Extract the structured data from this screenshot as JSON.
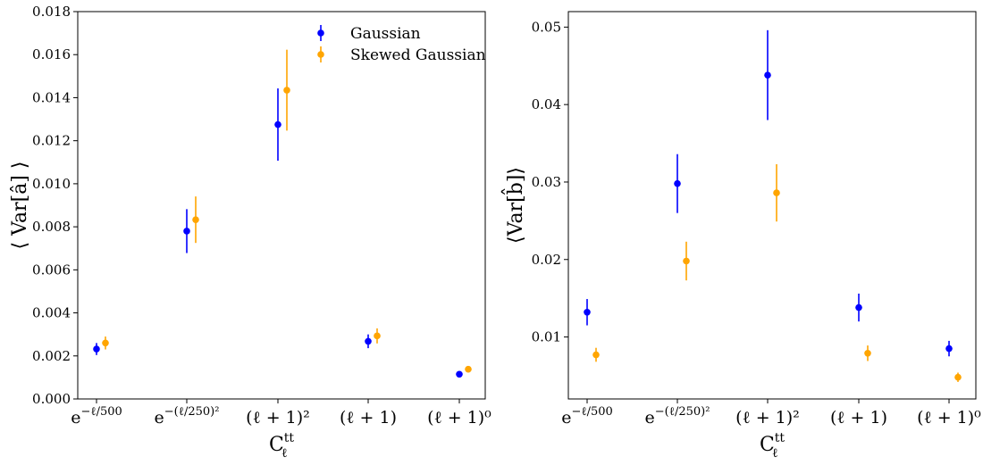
{
  "chart_data": [
    {
      "type": "scatter",
      "errorbars": true,
      "categories": [
        "e^{-ℓ/500}",
        "e^{-(ℓ/250)^2}",
        "(ℓ+1)^2",
        "(ℓ+1)",
        "(ℓ+1)^0"
      ],
      "category_labels": [
        {
          "base": "e",
          "sup": "−ℓ/500"
        },
        {
          "base": "e",
          "sup": "−(ℓ/250)²"
        },
        {
          "base": "(ℓ + 1)²",
          "sup": ""
        },
        {
          "base": "(ℓ + 1)",
          "sup": ""
        },
        {
          "base": "(ℓ + 1)⁰",
          "sup": ""
        }
      ],
      "xlabel": {
        "base": "C",
        "sub": "ℓ",
        "sup": "tt"
      },
      "ylabel": "⟨ Var[â] ⟩",
      "ylim": [
        0,
        0.018
      ],
      "yticks": [
        "0.000",
        "0.002",
        "0.004",
        "0.006",
        "0.008",
        "0.010",
        "0.012",
        "0.014",
        "0.016",
        "0.018"
      ],
      "legend": {
        "position": "top-right"
      },
      "series": [
        {
          "name": "Gaussian",
          "color": "#0000ff",
          "values": [
            0.00232,
            0.0078,
            0.01275,
            0.00268,
            0.00115
          ],
          "errors": [
            0.00028,
            0.00102,
            0.00168,
            0.00032,
            0.00012
          ]
        },
        {
          "name": "Skewed Gaussian",
          "color": "#ffa500",
          "values": [
            0.0026,
            0.00833,
            0.01435,
            0.00293,
            0.00138
          ],
          "errors": [
            0.0003,
            0.00108,
            0.00188,
            0.00035,
            0.00014
          ]
        }
      ]
    },
    {
      "type": "scatter",
      "errorbars": true,
      "categories": [
        "e^{-ℓ/500}",
        "e^{-(ℓ/250)^2}",
        "(ℓ+1)^2",
        "(ℓ+1)",
        "(ℓ+1)^0"
      ],
      "category_labels": [
        {
          "base": "e",
          "sup": "−ℓ/500"
        },
        {
          "base": "e",
          "sup": "−(ℓ/250)²"
        },
        {
          "base": "(ℓ + 1)²",
          "sup": ""
        },
        {
          "base": "(ℓ + 1)",
          "sup": ""
        },
        {
          "base": "(ℓ + 1)⁰",
          "sup": ""
        }
      ],
      "xlabel": {
        "base": "C",
        "sub": "ℓ",
        "sup": "tt"
      },
      "ylabel": "⟨Var[b̂]⟩",
      "ylim": [
        0.002,
        0.052
      ],
      "yticks": [
        "0.01",
        "0.02",
        "0.03",
        "0.04",
        "0.05"
      ],
      "series": [
        {
          "name": "Gaussian",
          "color": "#0000ff",
          "values": [
            0.0132,
            0.0298,
            0.0438,
            0.0138,
            0.0085
          ],
          "errors": [
            0.0017,
            0.0038,
            0.0058,
            0.0018,
            0.001
          ]
        },
        {
          "name": "Skewed Gaussian",
          "color": "#ffa500",
          "values": [
            0.0077,
            0.0198,
            0.0286,
            0.0079,
            0.0048
          ],
          "errors": [
            0.0009,
            0.0025,
            0.0037,
            0.001,
            0.0006
          ]
        }
      ]
    }
  ]
}
